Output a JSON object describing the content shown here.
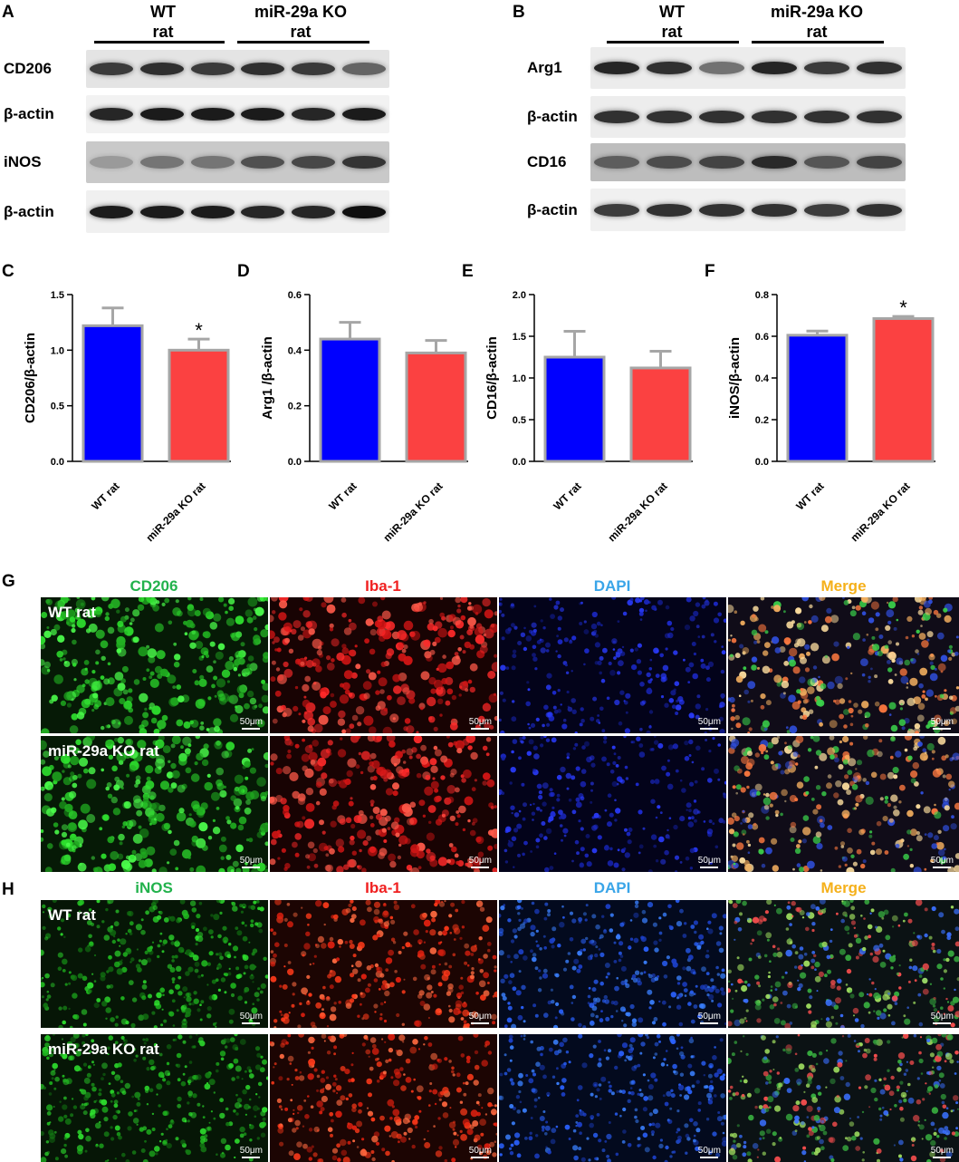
{
  "panels": {
    "a": "A",
    "b": "B",
    "c": "C",
    "d": "D",
    "e": "E",
    "f": "F",
    "g": "G",
    "h": "H"
  },
  "groups": {
    "wt": {
      "line1": "WT",
      "line2": "rat"
    },
    "ko": {
      "line1": "miR-29a KO",
      "line2": "rat"
    }
  },
  "blots": {
    "a": [
      "CD206",
      "β-actin",
      "iNOS",
      "β-actin"
    ],
    "b": [
      "Arg1",
      "β-actin",
      "CD16",
      "β-actin"
    ]
  },
  "colors": {
    "wt": "#0000ff",
    "ko": "#fb4141",
    "edge": "#a6a6a6",
    "green": "#22b24c",
    "red": "#f02020",
    "blue": "#3aa5e8",
    "orange": "#f5b01a"
  },
  "chart_data": [
    {
      "type": "bar",
      "categories": [
        "WT rat",
        "miR-29a KO rat"
      ],
      "values": [
        1.22,
        1.0
      ],
      "errors": [
        0.16,
        0.1
      ],
      "ylabel": "CD206/β-actin",
      "ylim": [
        0,
        1.5
      ],
      "yticks": [
        "0.0",
        "0.5",
        "1.0",
        "1.5"
      ],
      "tickvals": [
        0,
        0.5,
        1.0,
        1.5
      ],
      "annotations": [
        "",
        "*"
      ]
    },
    {
      "type": "bar",
      "categories": [
        "WT rat",
        "miR-29a KO rat"
      ],
      "values": [
        0.44,
        0.39
      ],
      "errors": [
        0.06,
        0.045
      ],
      "ylabel": "Arg1 /β-actin",
      "ylim": [
        0,
        0.6
      ],
      "yticks": [
        "0.0",
        "0.2",
        "0.4",
        "0.6"
      ],
      "tickvals": [
        0,
        0.2,
        0.4,
        0.6
      ],
      "annotations": [
        "",
        ""
      ]
    },
    {
      "type": "bar",
      "categories": [
        "WT rat",
        "miR-29a KO rat"
      ],
      "values": [
        1.25,
        1.12
      ],
      "errors": [
        0.31,
        0.2
      ],
      "ylabel": "CD16/β-actin",
      "ylim": [
        0,
        2.0
      ],
      "yticks": [
        "0.0",
        "0.5",
        "1.0",
        "1.5",
        "2.0"
      ],
      "tickvals": [
        0,
        0.5,
        1.0,
        1.5,
        2.0
      ],
      "annotations": [
        "",
        ""
      ]
    },
    {
      "type": "bar",
      "categories": [
        "WT rat",
        "miR-29a KO rat"
      ],
      "values": [
        0.605,
        0.685
      ],
      "errors": [
        0.02,
        0.01
      ],
      "ylabel": "iNOS/β-actin",
      "ylim": [
        0,
        0.8
      ],
      "yticks": [
        "0.0",
        "0.2",
        "0.4",
        "0.6",
        "0.8"
      ],
      "tickvals": [
        0,
        0.2,
        0.4,
        0.6,
        0.8
      ],
      "annotations": [
        "",
        "*"
      ]
    }
  ],
  "micro": {
    "g": {
      "channels": [
        "CD206",
        "Iba-1",
        "DAPI",
        "Merge"
      ],
      "rows": [
        "WT rat",
        "miR-29a KO rat"
      ]
    },
    "h": {
      "channels": [
        "iNOS",
        "Iba-1",
        "DAPI",
        "Merge"
      ],
      "rows": [
        "WT rat",
        "miR-29a KO rat"
      ]
    },
    "scalebar": "50μm"
  }
}
